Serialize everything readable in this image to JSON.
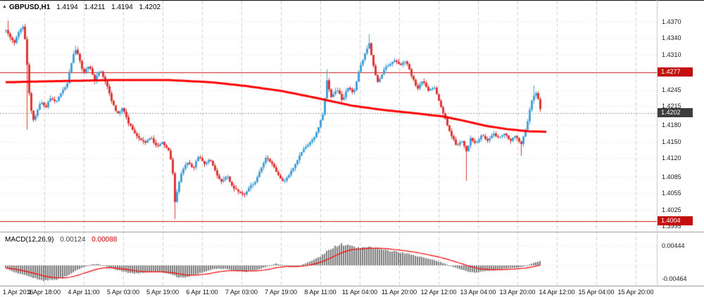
{
  "header": {
    "symbol": "GBPUSD,H1",
    "open": "1.4194",
    "high": "1.4211",
    "low": "1.4194",
    "close": "1.4202"
  },
  "macd_header": {
    "label": "MACD(12,26,9)",
    "value_main": "0.00124",
    "value_signal": "0.00088"
  },
  "price_axis": {
    "labels": [
      {
        "text": "1.4370",
        "price": 1.437
      },
      {
        "text": "1.4340",
        "price": 1.434
      },
      {
        "text": "1.4310",
        "price": 1.431
      },
      {
        "text": "1.4245",
        "price": 1.4245
      },
      {
        "text": "1.4215",
        "price": 1.4215
      },
      {
        "text": "1.4180",
        "price": 1.418
      },
      {
        "text": "1.4150",
        "price": 1.415
      },
      {
        "text": "1.4120",
        "price": 1.412
      },
      {
        "text": "1.4085",
        "price": 1.4085
      },
      {
        "text": "1.4055",
        "price": 1.4055
      },
      {
        "text": "1.4025",
        "price": 1.4025
      },
      {
        "text": "1.3995",
        "price": 1.3995
      }
    ],
    "badges": [
      {
        "text": "1.4277",
        "price": 1.4277,
        "type": "red"
      },
      {
        "text": "1.4202",
        "price": 1.4202,
        "type": "dark"
      },
      {
        "text": "1.4004",
        "price": 1.4004,
        "type": "red"
      }
    ]
  },
  "macd_axis": {
    "labels": [
      {
        "text": "0.00444",
        "value": 0.00444
      },
      {
        "text": "-0.00464",
        "value": -0.00464
      }
    ]
  },
  "time_axis": {
    "first_label": "1 Apr 2016",
    "labels": [
      "1 Apr 18:00",
      "4 Apr 11:00",
      "5 Apr 03:00",
      "5 Apr 19:00",
      "6 Apr 11:00",
      "7 Apr 03:00",
      "7 Apr 19:00",
      "8 Apr 11:00",
      "11 Apr 04:00",
      "11 Apr 20:00",
      "12 Apr 12:00",
      "13 Apr 04:00",
      "13 Apr 20:00",
      "14 Apr 12:00",
      "15 Apr 04:00",
      "15 Apr 20:00"
    ]
  },
  "colors": {
    "bull": "#46a0dc",
    "bear": "#e13434",
    "ma": "#ff0000",
    "level": "#cc1a1a",
    "current_line": "#9a9a9a",
    "grid_h": "#dcdcdc",
    "grid_v": "#cfcfcf",
    "macd_hist": "#7a7a7a",
    "macd_signal": "#ff0000",
    "separator": "#9a9a9a"
  },
  "chart_data": {
    "type": "candlestick",
    "symbol": "GBPUSD",
    "timeframe": "H1",
    "title": "GBPUSD,H1 1.4194 1.4211 1.4194 1.4202",
    "ylim": [
      1.3985,
      1.441
    ],
    "current_price": 1.4202,
    "levels": [
      1.4277,
      1.4004
    ],
    "x_labels": [
      "1 Apr 2016",
      "1 Apr 18:00",
      "4 Apr 11:00",
      "5 Apr 03:00",
      "5 Apr 19:00",
      "6 Apr 11:00",
      "7 Apr 03:00",
      "7 Apr 19:00",
      "8 Apr 11:00",
      "11 Apr 04:00",
      "11 Apr 20:00",
      "12 Apr 12:00",
      "13 Apr 04:00",
      "13 Apr 20:00",
      "14 Apr 12:00",
      "15 Apr 04:00",
      "15 Apr 20:00"
    ],
    "price_path": [
      [
        8,
        1.4355
      ],
      [
        14,
        1.434
      ],
      [
        20,
        1.433
      ],
      [
        26,
        1.4352
      ],
      [
        32,
        1.436
      ],
      [
        36,
        1.433
      ],
      [
        40,
        1.425
      ],
      [
        46,
        1.4185
      ],
      [
        52,
        1.4205
      ],
      [
        58,
        1.4225
      ],
      [
        64,
        1.421
      ],
      [
        70,
        1.4232
      ],
      [
        78,
        1.4222
      ],
      [
        86,
        1.424
      ],
      [
        94,
        1.4252
      ],
      [
        100,
        1.429
      ],
      [
        106,
        1.432
      ],
      [
        112,
        1.4305
      ],
      [
        118,
        1.4275
      ],
      [
        126,
        1.429
      ],
      [
        134,
        1.4262
      ],
      [
        142,
        1.4283
      ],
      [
        150,
        1.4258
      ],
      [
        158,
        1.4225
      ],
      [
        166,
        1.42
      ],
      [
        174,
        1.4212
      ],
      [
        182,
        1.4185
      ],
      [
        190,
        1.4168
      ],
      [
        198,
        1.4155
      ],
      [
        206,
        1.4148
      ],
      [
        214,
        1.4158
      ],
      [
        222,
        1.414
      ],
      [
        230,
        1.4148
      ],
      [
        238,
        1.4138
      ],
      [
        244,
        1.411
      ],
      [
        248,
        1.404
      ],
      [
        252,
        1.4065
      ],
      [
        258,
        1.4095
      ],
      [
        266,
        1.4112
      ],
      [
        274,
        1.41
      ],
      [
        282,
        1.4125
      ],
      [
        290,
        1.4108
      ],
      [
        298,
        1.4118
      ],
      [
        306,
        1.4094
      ],
      [
        314,
        1.4076
      ],
      [
        322,
        1.4088
      ],
      [
        330,
        1.4068
      ],
      [
        338,
        1.4058
      ],
      [
        346,
        1.405
      ],
      [
        354,
        1.4066
      ],
      [
        362,
        1.4076
      ],
      [
        370,
        1.41
      ],
      [
        378,
        1.4122
      ],
      [
        386,
        1.4108
      ],
      [
        394,
        1.409
      ],
      [
        402,
        1.4076
      ],
      [
        410,
        1.409
      ],
      [
        418,
        1.4105
      ],
      [
        426,
        1.4126
      ],
      [
        434,
        1.4142
      ],
      [
        442,
        1.415
      ],
      [
        450,
        1.4168
      ],
      [
        458,
        1.42
      ],
      [
        464,
        1.4262
      ],
      [
        470,
        1.4232
      ],
      [
        478,
        1.4246
      ],
      [
        486,
        1.4226
      ],
      [
        494,
        1.425
      ],
      [
        502,
        1.4238
      ],
      [
        510,
        1.4282
      ],
      [
        518,
        1.4312
      ],
      [
        524,
        1.433
      ],
      [
        530,
        1.4288
      ],
      [
        536,
        1.4258
      ],
      [
        544,
        1.428
      ],
      [
        552,
        1.4292
      ],
      [
        560,
        1.43
      ],
      [
        568,
        1.429
      ],
      [
        576,
        1.4298
      ],
      [
        584,
        1.4272
      ],
      [
        592,
        1.4246
      ],
      [
        600,
        1.4262
      ],
      [
        608,
        1.4242
      ],
      [
        616,
        1.4252
      ],
      [
        624,
        1.4222
      ],
      [
        632,
        1.4192
      ],
      [
        640,
        1.4163
      ],
      [
        648,
        1.4142
      ],
      [
        656,
        1.4152
      ],
      [
        662,
        1.4132
      ],
      [
        668,
        1.4156
      ],
      [
        676,
        1.4147
      ],
      [
        684,
        1.4162
      ],
      [
        692,
        1.4152
      ],
      [
        700,
        1.4166
      ],
      [
        708,
        1.4156
      ],
      [
        716,
        1.4166
      ],
      [
        724,
        1.415
      ],
      [
        732,
        1.4162
      ],
      [
        740,
        1.4146
      ],
      [
        748,
        1.4182
      ],
      [
        756,
        1.4232
      ],
      [
        762,
        1.4242
      ],
      [
        768,
        1.4205
      ]
    ],
    "spikes": [
      {
        "x": 10,
        "high": 1.4372
      },
      {
        "x": 38,
        "low": 1.4172
      },
      {
        "x": 106,
        "high": 1.4326
      },
      {
        "x": 248,
        "low": 1.4008
      },
      {
        "x": 464,
        "high": 1.4283
      },
      {
        "x": 524,
        "high": 1.4347
      },
      {
        "x": 662,
        "low": 1.4078
      },
      {
        "x": 740,
        "low": 1.4124
      },
      {
        "x": 758,
        "high": 1.4253
      }
    ],
    "moving_average_path": [
      [
        8,
        1.4259
      ],
      [
        80,
        1.4261
      ],
      [
        160,
        1.4263
      ],
      [
        240,
        1.4263
      ],
      [
        300,
        1.4259
      ],
      [
        350,
        1.4252
      ],
      [
        400,
        1.4243
      ],
      [
        450,
        1.423
      ],
      [
        500,
        1.4216
      ],
      [
        545,
        1.4208
      ],
      [
        590,
        1.4202
      ],
      [
        630,
        1.4196
      ],
      [
        660,
        1.4188
      ],
      [
        690,
        1.4179
      ],
      [
        720,
        1.4173
      ],
      [
        750,
        1.4169
      ],
      [
        778,
        1.4168
      ]
    ],
    "macd": {
      "indicator": "MACD(12,26,9)",
      "current_main": 0.00124,
      "current_signal": 0.00088,
      "range": [
        -0.00464,
        0.00444
      ],
      "histogram_path": [
        [
          8,
          -0.0006
        ],
        [
          20,
          -0.0015
        ],
        [
          35,
          -0.0022
        ],
        [
          50,
          -0.003
        ],
        [
          65,
          -0.0034
        ],
        [
          80,
          -0.0032
        ],
        [
          95,
          -0.0024
        ],
        [
          110,
          -0.001
        ],
        [
          120,
          -0.0003
        ],
        [
          130,
          0.0002
        ],
        [
          140,
          0.0003
        ],
        [
          150,
          -0.0002
        ],
        [
          165,
          -0.001
        ],
        [
          180,
          -0.0016
        ],
        [
          195,
          -0.0018
        ],
        [
          210,
          -0.0016
        ],
        [
          225,
          -0.0014
        ],
        [
          240,
          -0.0018
        ],
        [
          252,
          -0.0026
        ],
        [
          262,
          -0.0028
        ],
        [
          275,
          -0.0022
        ],
        [
          290,
          -0.0014
        ],
        [
          305,
          -0.0008
        ],
        [
          320,
          -0.0008
        ],
        [
          335,
          -0.0012
        ],
        [
          350,
          -0.0014
        ],
        [
          365,
          -0.001
        ],
        [
          380,
          -0.0002
        ],
        [
          392,
          0.0004
        ],
        [
          405,
          0.0
        ],
        [
          418,
          -0.0003
        ],
        [
          430,
          0.0002
        ],
        [
          442,
          0.001
        ],
        [
          455,
          0.002
        ],
        [
          465,
          0.0032
        ],
        [
          475,
          0.0042
        ],
        [
          485,
          0.0047
        ],
        [
          495,
          0.0044
        ],
        [
          505,
          0.004
        ],
        [
          515,
          0.004
        ],
        [
          525,
          0.0042
        ],
        [
          535,
          0.0038
        ],
        [
          545,
          0.0034
        ],
        [
          555,
          0.0032
        ],
        [
          565,
          0.003
        ],
        [
          575,
          0.0028
        ],
        [
          585,
          0.0024
        ],
        [
          595,
          0.002
        ],
        [
          605,
          0.0016
        ],
        [
          615,
          0.0012
        ],
        [
          625,
          0.0008
        ],
        [
          635,
          0.0002
        ],
        [
          645,
          -0.0004
        ],
        [
          655,
          -0.001
        ],
        [
          665,
          -0.0014
        ],
        [
          675,
          -0.0016
        ],
        [
          685,
          -0.0014
        ],
        [
          695,
          -0.0012
        ],
        [
          705,
          -0.001
        ],
        [
          715,
          -0.0008
        ],
        [
          725,
          -0.0006
        ],
        [
          735,
          -0.0005
        ],
        [
          745,
          -0.0002
        ],
        [
          755,
          0.0004
        ],
        [
          765,
          0.0009
        ],
        [
          772,
          0.0012
        ]
      ]
    }
  }
}
